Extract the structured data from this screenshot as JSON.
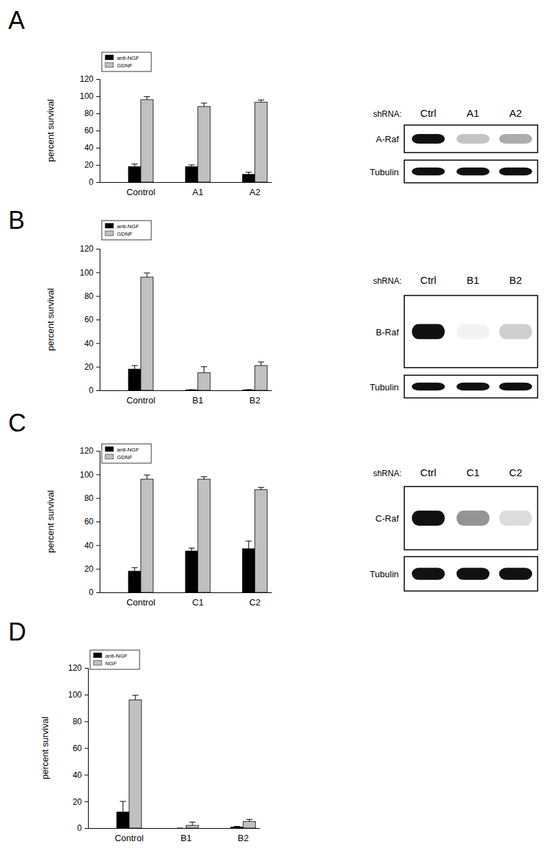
{
  "chart_data": [
    {
      "type": "bar",
      "title": "A",
      "y_label": "percent survival",
      "categories": [
        "Control",
        "A1",
        "A2"
      ],
      "series": [
        {
          "name": "anti-NGF",
          "color": "#000000",
          "values": [
            18,
            18,
            9
          ],
          "errors": [
            3,
            2,
            2.5
          ]
        },
        {
          "name": "GDNF",
          "color": "#c0c0c0",
          "values": [
            96,
            88,
            93
          ],
          "errors": [
            3.5,
            4,
            2.5
          ]
        }
      ],
      "ylim": [
        0,
        120
      ],
      "yticks": [
        0,
        20,
        40,
        60,
        80,
        100,
        120
      ],
      "legend": "upper left"
    },
    {
      "type": "bar",
      "title": "B",
      "y_label": "percent survival",
      "categories": [
        "Control",
        "B1",
        "B2"
      ],
      "series": [
        {
          "name": "anti-NGF",
          "color": "#000000",
          "values": [
            18,
            0.3,
            0.3
          ],
          "errors": [
            3,
            0.3,
            0.3
          ]
        },
        {
          "name": "GDNF",
          "color": "#c0c0c0",
          "values": [
            96,
            15,
            21
          ],
          "errors": [
            3.5,
            5,
            3
          ]
        }
      ],
      "ylim": [
        0,
        120
      ],
      "yticks": [
        0,
        20,
        40,
        60,
        80,
        100,
        120
      ],
      "legend": "upper left"
    },
    {
      "type": "bar",
      "title": "C",
      "y_label": "percent survival",
      "categories": [
        "Control",
        "C1",
        "C2"
      ],
      "series": [
        {
          "name": "anti-NGF",
          "color": "#000000",
          "values": [
            18,
            35,
            37
          ],
          "errors": [
            3,
            2.5,
            6.5
          ]
        },
        {
          "name": "GDNF",
          "color": "#c0c0c0",
          "values": [
            96,
            96,
            87
          ],
          "errors": [
            3.5,
            2,
            2
          ]
        }
      ],
      "ylim": [
        0,
        120
      ],
      "yticks": [
        0,
        20,
        40,
        60,
        80,
        100,
        120
      ],
      "legend": "upper left"
    },
    {
      "type": "bar",
      "title": "D",
      "y_label": "percent survival",
      "categories": [
        "Control",
        "B1",
        "B2"
      ],
      "series": [
        {
          "name": "anti-NGF",
          "color": "#000000",
          "values": [
            12,
            0,
            0.8
          ],
          "errors": [
            8,
            0,
            0.5
          ]
        },
        {
          "name": "NGF",
          "color": "#c0c0c0",
          "values": [
            96,
            2,
            5
          ],
          "errors": [
            3.5,
            2.5,
            1.5
          ]
        }
      ],
      "ylim": [
        0,
        120
      ],
      "yticks": [
        0,
        20,
        40,
        60,
        80,
        100,
        120
      ],
      "legend": "upper left"
    }
  ],
  "blots": [
    {
      "lane_label": "shRNA:",
      "lanes": [
        "Ctrl",
        "A1",
        "A2"
      ],
      "rows": [
        {
          "label": "A-Raf",
          "bands": [
            1,
            0.25,
            0.35
          ]
        },
        {
          "label": "Tubulin",
          "bands": [
            1,
            1,
            1
          ]
        }
      ]
    },
    {
      "lane_label": "shRNA:",
      "lanes": [
        "Ctrl",
        "B1",
        "B2"
      ],
      "rows": [
        {
          "label": "B-Raf",
          "bands": [
            1,
            0.05,
            0.2
          ]
        },
        {
          "label": "Tubulin",
          "bands": [
            1,
            1,
            1
          ]
        }
      ]
    },
    {
      "lane_label": "shRNA:",
      "lanes": [
        "Ctrl",
        "C1",
        "C2"
      ],
      "rows": [
        {
          "label": "C-Raf",
          "bands": [
            1,
            0.45,
            0.15
          ]
        },
        {
          "label": "Tubulin",
          "bands": [
            1,
            1,
            1
          ]
        }
      ]
    }
  ]
}
